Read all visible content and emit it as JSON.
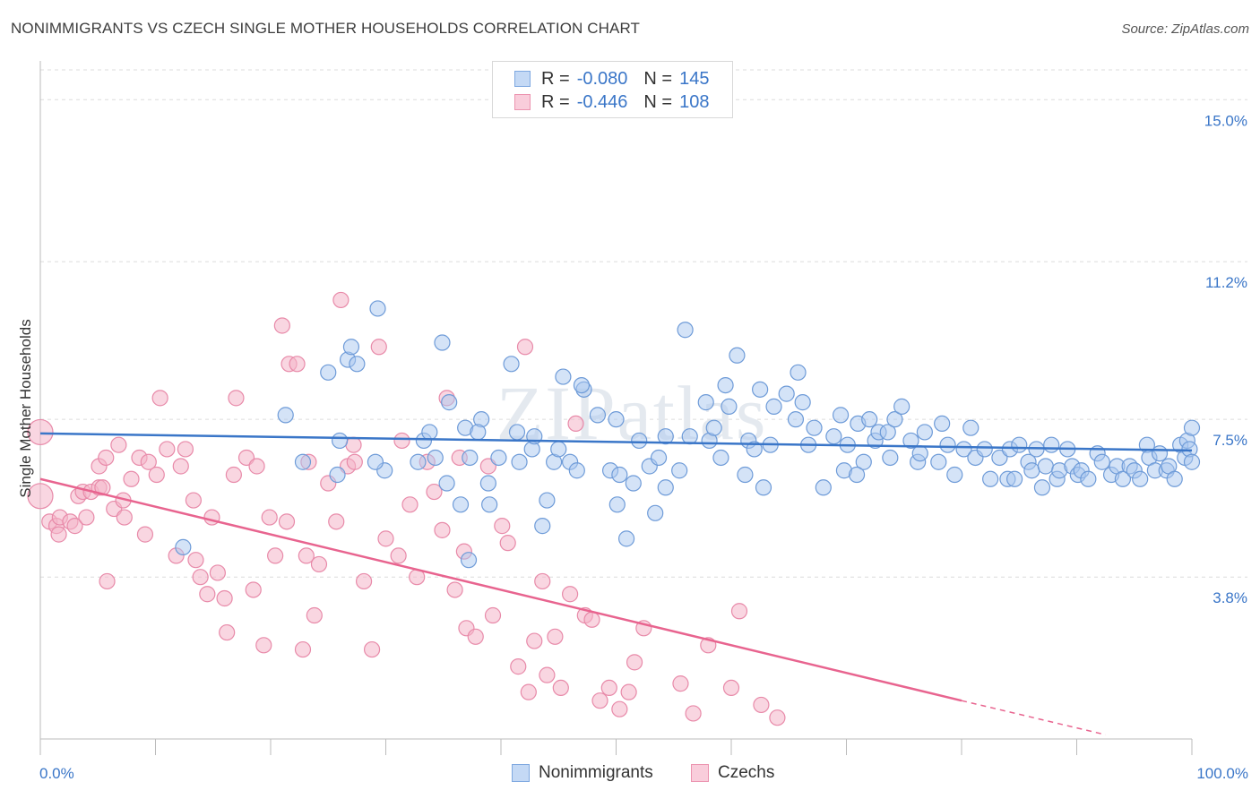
{
  "title": "NONIMMIGRANTS VS CZECH SINGLE MOTHER HOUSEHOLDS CORRELATION CHART",
  "source": "Source: ZipAtlas.com",
  "watermark": "ZIPatlas",
  "colors": {
    "blue": "#3a76c8",
    "blue_fill": "#aac8f0",
    "pink": "#e8648f",
    "pink_fill": "#f4b4c8",
    "tick_label": "#3a76c8"
  },
  "legend": {
    "rows": [
      {
        "r_label": "R =",
        "r_value": "-0.080",
        "n_label": "N =",
        "n_value": "145"
      },
      {
        "r_label": "R =",
        "r_value": "-0.446",
        "n_label": "N =",
        "n_value": "108"
      }
    ]
  },
  "bottom_legend": {
    "series1": "Nonimmigrants",
    "series2": "Czechs"
  },
  "chart_data": {
    "type": "scatter",
    "title": "NONIMMIGRANTS VS CZECH SINGLE MOTHER HOUSEHOLDS CORRELATION CHART",
    "xlabel": "",
    "ylabel": "Single Mother Households",
    "xlim": [
      0,
      100
    ],
    "ylim": [
      0,
      15.7
    ],
    "x_tick_labels": [
      "0.0%",
      "100.0%"
    ],
    "y_ticks": [
      3.8,
      7.5,
      11.2,
      15.0
    ],
    "y_tick_labels": [
      "3.8%",
      "7.5%",
      "11.2%",
      "15.0%"
    ],
    "grid": true,
    "legend_position": "top-center",
    "series": [
      {
        "name": "Nonimmigrants",
        "color": "#3a76c8",
        "trend": {
          "x": [
            0,
            100
          ],
          "y": [
            7.17,
            6.77
          ]
        },
        "points": [
          [
            12.4,
            4.5
          ],
          [
            21.3,
            7.6
          ],
          [
            22.8,
            6.5
          ],
          [
            25.0,
            8.6
          ],
          [
            25.8,
            6.2
          ],
          [
            26.0,
            7.0
          ],
          [
            26.7,
            8.9
          ],
          [
            27.0,
            9.2
          ],
          [
            27.5,
            8.8
          ],
          [
            29.3,
            10.1
          ],
          [
            29.9,
            6.3
          ],
          [
            29.1,
            6.5
          ],
          [
            32.8,
            6.5
          ],
          [
            33.3,
            7.0
          ],
          [
            33.8,
            7.2
          ],
          [
            34.3,
            6.6
          ],
          [
            34.9,
            9.3
          ],
          [
            35.3,
            6.0
          ],
          [
            36.5,
            5.5
          ],
          [
            36.9,
            7.3
          ],
          [
            37.2,
            4.2
          ],
          [
            37.3,
            6.6
          ],
          [
            38.3,
            7.5
          ],
          [
            38.9,
            6.0
          ],
          [
            39.0,
            5.5
          ],
          [
            39.8,
            6.6
          ],
          [
            41.4,
            7.2
          ],
          [
            41.6,
            6.5
          ],
          [
            42.7,
            6.8
          ],
          [
            42.9,
            7.1
          ],
          [
            43.6,
            5.0
          ],
          [
            44.6,
            6.5
          ],
          [
            45.4,
            8.5
          ],
          [
            46.0,
            6.5
          ],
          [
            46.6,
            6.3
          ],
          [
            47.2,
            8.2
          ],
          [
            48.4,
            7.6
          ],
          [
            49.5,
            6.3
          ],
          [
            50.1,
            5.5
          ],
          [
            50.3,
            6.2
          ],
          [
            50.9,
            4.7
          ],
          [
            51.5,
            6.0
          ],
          [
            52.0,
            7.0
          ],
          [
            52.9,
            6.4
          ],
          [
            53.4,
            5.3
          ],
          [
            53.7,
            6.6
          ],
          [
            54.3,
            7.1
          ],
          [
            54.3,
            5.9
          ],
          [
            55.5,
            6.3
          ],
          [
            56.4,
            7.1
          ],
          [
            57.8,
            7.9
          ],
          [
            58.1,
            7.0
          ],
          [
            58.5,
            7.3
          ],
          [
            59.1,
            6.6
          ],
          [
            59.5,
            8.3
          ],
          [
            59.8,
            7.8
          ],
          [
            61.2,
            6.2
          ],
          [
            61.5,
            7.0
          ],
          [
            62.0,
            6.8
          ],
          [
            62.5,
            8.2
          ],
          [
            62.8,
            5.9
          ],
          [
            63.4,
            6.9
          ],
          [
            63.7,
            7.8
          ],
          [
            64.8,
            8.1
          ],
          [
            65.6,
            7.5
          ],
          [
            65.8,
            8.6
          ],
          [
            66.2,
            7.9
          ],
          [
            66.7,
            6.9
          ],
          [
            67.2,
            7.3
          ],
          [
            68.0,
            5.9
          ],
          [
            68.9,
            7.1
          ],
          [
            69.5,
            7.6
          ],
          [
            69.8,
            6.3
          ],
          [
            70.1,
            6.9
          ],
          [
            71.0,
            7.4
          ],
          [
            71.5,
            6.5
          ],
          [
            72.0,
            7.5
          ],
          [
            72.5,
            7.0
          ],
          [
            72.8,
            7.2
          ],
          [
            73.6,
            7.2
          ],
          [
            73.8,
            6.6
          ],
          [
            74.2,
            7.5
          ],
          [
            74.8,
            7.8
          ],
          [
            75.6,
            7.0
          ],
          [
            76.2,
            6.5
          ],
          [
            76.4,
            6.7
          ],
          [
            76.8,
            7.2
          ],
          [
            78.0,
            6.5
          ],
          [
            78.3,
            7.4
          ],
          [
            78.8,
            6.9
          ],
          [
            79.4,
            6.2
          ],
          [
            80.2,
            6.8
          ],
          [
            80.8,
            7.3
          ],
          [
            81.2,
            6.6
          ],
          [
            82.0,
            6.8
          ],
          [
            82.5,
            6.1
          ],
          [
            83.3,
            6.6
          ],
          [
            84.0,
            6.1
          ],
          [
            84.2,
            6.8
          ],
          [
            84.6,
            6.1
          ],
          [
            85.0,
            6.9
          ],
          [
            85.8,
            6.5
          ],
          [
            86.1,
            6.3
          ],
          [
            86.5,
            6.8
          ],
          [
            87.0,
            5.9
          ],
          [
            87.3,
            6.4
          ],
          [
            87.8,
            6.9
          ],
          [
            88.3,
            6.1
          ],
          [
            88.5,
            6.3
          ],
          [
            89.2,
            6.8
          ],
          [
            89.6,
            6.4
          ],
          [
            90.1,
            6.2
          ],
          [
            90.4,
            6.3
          ],
          [
            91.0,
            6.1
          ],
          [
            91.8,
            6.7
          ],
          [
            92.2,
            6.5
          ],
          [
            93.0,
            6.2
          ],
          [
            93.5,
            6.4
          ],
          [
            94.0,
            6.1
          ],
          [
            94.6,
            6.4
          ],
          [
            95.0,
            6.3
          ],
          [
            95.5,
            6.1
          ],
          [
            96.1,
            6.9
          ],
          [
            96.3,
            6.6
          ],
          [
            96.8,
            6.3
          ],
          [
            97.2,
            6.7
          ],
          [
            97.8,
            6.3
          ],
          [
            98.0,
            6.4
          ],
          [
            98.5,
            6.1
          ],
          [
            99.0,
            6.9
          ],
          [
            99.4,
            6.6
          ],
          [
            99.6,
            7.0
          ],
          [
            99.8,
            6.8
          ],
          [
            100.0,
            6.5
          ],
          [
            100.0,
            7.3
          ],
          [
            70.9,
            6.2
          ],
          [
            60.5,
            9.0
          ],
          [
            56.0,
            9.6
          ],
          [
            47.0,
            8.3
          ],
          [
            40.9,
            8.8
          ],
          [
            50.0,
            7.5
          ],
          [
            45.0,
            6.8
          ],
          [
            44.0,
            5.6
          ],
          [
            38.0,
            7.2
          ],
          [
            35.5,
            7.9
          ]
        ]
      },
      {
        "name": "Czechs",
        "color": "#e8648f",
        "trend": {
          "x": [
            0,
            80
          ],
          "y": [
            6.1,
            0.9
          ]
        },
        "trend_dashed": {
          "x": [
            80,
            92.5
          ],
          "y": [
            0.9,
            0.1
          ]
        },
        "points": [
          [
            0,
            7.2
          ],
          [
            0,
            5.7
          ],
          [
            0.8,
            5.1
          ],
          [
            1.4,
            5.0
          ],
          [
            1.7,
            5.2
          ],
          [
            1.6,
            4.8
          ],
          [
            2.6,
            5.1
          ],
          [
            3.0,
            5.0
          ],
          [
            3.3,
            5.7
          ],
          [
            4.0,
            5.2
          ],
          [
            3.7,
            5.8
          ],
          [
            4.4,
            5.8
          ],
          [
            5.1,
            5.9
          ],
          [
            5.4,
            5.9
          ],
          [
            5.1,
            6.4
          ],
          [
            5.7,
            6.6
          ],
          [
            5.8,
            3.7
          ],
          [
            6.4,
            5.4
          ],
          [
            6.8,
            6.9
          ],
          [
            7.2,
            5.6
          ],
          [
            7.3,
            5.2
          ],
          [
            7.9,
            6.1
          ],
          [
            8.6,
            6.6
          ],
          [
            9.1,
            4.8
          ],
          [
            9.4,
            6.5
          ],
          [
            10.1,
            6.2
          ],
          [
            10.4,
            8.0
          ],
          [
            11.0,
            6.8
          ],
          [
            11.8,
            4.3
          ],
          [
            12.2,
            6.4
          ],
          [
            12.6,
            6.8
          ],
          [
            13.3,
            5.6
          ],
          [
            13.5,
            4.2
          ],
          [
            13.9,
            3.8
          ],
          [
            14.5,
            3.4
          ],
          [
            14.9,
            5.2
          ],
          [
            15.4,
            3.9
          ],
          [
            16.0,
            3.3
          ],
          [
            16.2,
            2.5
          ],
          [
            16.8,
            6.2
          ],
          [
            17.0,
            8.0
          ],
          [
            17.9,
            6.6
          ],
          [
            18.5,
            3.5
          ],
          [
            18.8,
            6.4
          ],
          [
            19.4,
            2.2
          ],
          [
            19.9,
            5.2
          ],
          [
            20.4,
            4.3
          ],
          [
            21.0,
            9.7
          ],
          [
            21.4,
            5.1
          ],
          [
            21.6,
            8.8
          ],
          [
            22.3,
            8.8
          ],
          [
            22.8,
            2.1
          ],
          [
            23.1,
            4.3
          ],
          [
            23.3,
            6.5
          ],
          [
            23.8,
            2.9
          ],
          [
            24.2,
            4.1
          ],
          [
            25.0,
            6.0
          ],
          [
            25.7,
            5.1
          ],
          [
            26.1,
            10.3
          ],
          [
            26.7,
            6.4
          ],
          [
            27.2,
            6.9
          ],
          [
            27.3,
            6.5
          ],
          [
            28.1,
            3.7
          ],
          [
            28.8,
            2.1
          ],
          [
            29.4,
            9.2
          ],
          [
            30.0,
            4.7
          ],
          [
            31.1,
            4.3
          ],
          [
            31.4,
            7.0
          ],
          [
            32.1,
            5.5
          ],
          [
            32.7,
            3.8
          ],
          [
            33.6,
            6.5
          ],
          [
            34.2,
            5.8
          ],
          [
            34.9,
            4.9
          ],
          [
            35.3,
            8.0
          ],
          [
            36.0,
            3.5
          ],
          [
            36.4,
            6.6
          ],
          [
            36.8,
            4.4
          ],
          [
            37.0,
            2.6
          ],
          [
            37.8,
            2.4
          ],
          [
            38.9,
            6.4
          ],
          [
            39.3,
            2.9
          ],
          [
            40.1,
            5.0
          ],
          [
            40.6,
            4.6
          ],
          [
            41.5,
            1.7
          ],
          [
            42.1,
            9.2
          ],
          [
            42.4,
            1.1
          ],
          [
            42.9,
            2.3
          ],
          [
            43.6,
            3.7
          ],
          [
            44.0,
            1.5
          ],
          [
            44.7,
            2.4
          ],
          [
            45.2,
            1.2
          ],
          [
            46.0,
            3.4
          ],
          [
            46.5,
            7.4
          ],
          [
            47.3,
            2.9
          ],
          [
            47.9,
            2.8
          ],
          [
            48.6,
            0.9
          ],
          [
            49.4,
            1.2
          ],
          [
            50.3,
            0.7
          ],
          [
            51.1,
            1.1
          ],
          [
            51.6,
            1.8
          ],
          [
            52.4,
            2.6
          ],
          [
            55.6,
            1.3
          ],
          [
            56.7,
            0.6
          ],
          [
            58.0,
            2.2
          ],
          [
            60.0,
            1.2
          ],
          [
            60.7,
            3.0
          ],
          [
            62.6,
            0.8
          ],
          [
            64.0,
            0.5
          ]
        ]
      }
    ]
  }
}
